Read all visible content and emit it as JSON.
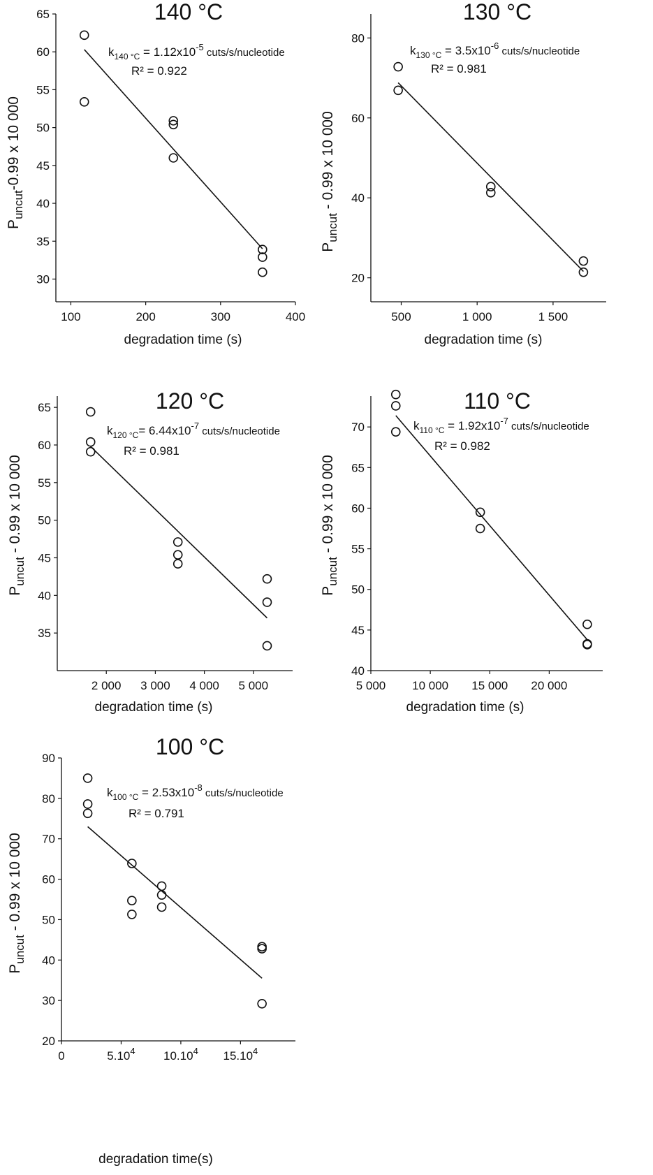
{
  "chart_data": [
    {
      "type": "scatter",
      "title": "140 °C",
      "xlabel": "degradation time (s)",
      "ylabel": {
        "main": "P",
        "sub": "uncut",
        "rest": "-0.99 x 10 000"
      },
      "x_ticks": [
        {
          "v": 100,
          "label": "100"
        },
        {
          "v": 200,
          "label": "200"
        },
        {
          "v": 300,
          "label": "300"
        },
        {
          "v": 400,
          "label": "400"
        }
      ],
      "y_ticks": [
        {
          "v": 30,
          "label": "30"
        },
        {
          "v": 35,
          "label": "35"
        },
        {
          "v": 40,
          "label": "40"
        },
        {
          "v": 45,
          "label": "45"
        },
        {
          "v": 50,
          "label": "50"
        },
        {
          "v": 55,
          "label": "55"
        },
        {
          "v": 60,
          "label": "60"
        },
        {
          "v": 65,
          "label": "65"
        }
      ],
      "xlim": [
        80,
        400
      ],
      "ylim": [
        27,
        65
      ],
      "points": [
        [
          118,
          62.2
        ],
        [
          118,
          53.4
        ],
        [
          237,
          50.9
        ],
        [
          237,
          50.4
        ],
        [
          237,
          46.0
        ],
        [
          356,
          33.9
        ],
        [
          356,
          32.9
        ],
        [
          356,
          30.9
        ]
      ],
      "fit": [
        [
          118,
          60.3
        ],
        [
          356,
          34.0
        ]
      ],
      "annotation": {
        "k_prefix": "k",
        "k_sub": "140 °C",
        "k_eq": " = 1.12x10",
        "k_exp": "-5",
        "k_unit": " cuts/s/nucleotide",
        "r2": "R² = 0.922"
      }
    },
    {
      "type": "scatter",
      "title": "130 °C",
      "xlabel": "degradation time (s)",
      "ylabel": {
        "main": "P",
        "sub": "uncut",
        "rest": " - 0.99 x 10 000"
      },
      "x_ticks": [
        {
          "v": 500,
          "label": "500"
        },
        {
          "v": 1000,
          "label": "1 000"
        },
        {
          "v": 1500,
          "label": "1 500"
        }
      ],
      "y_ticks": [
        {
          "v": 20,
          "label": "20"
        },
        {
          "v": 40,
          "label": "40"
        },
        {
          "v": 60,
          "label": "60"
        },
        {
          "v": 80,
          "label": "80"
        }
      ],
      "xlim": [
        300,
        1850
      ],
      "ylim": [
        14,
        86
      ],
      "points": [
        [
          480,
          72.8
        ],
        [
          480,
          66.9
        ],
        [
          1090,
          42.8
        ],
        [
          1090,
          41.3
        ],
        [
          1700,
          24.2
        ],
        [
          1700,
          21.4
        ]
      ],
      "fit": [
        [
          480,
          68.8
        ],
        [
          1700,
          21.6
        ]
      ],
      "annotation": {
        "k_prefix": "k",
        "k_sub": "130 °C",
        "k_eq": " = 3.5x10",
        "k_exp": "-6",
        "k_unit": " cuts/s/nucleotide",
        "r2": "R² = 0.981"
      }
    },
    {
      "type": "scatter",
      "title": "120 °C",
      "xlabel": "degradation time (s)",
      "ylabel": {
        "main": "P",
        "sub": "uncut",
        "rest": " - 0.99 x 10 000"
      },
      "x_ticks": [
        {
          "v": 2000,
          "label": "2 000"
        },
        {
          "v": 3000,
          "label": "3 000"
        },
        {
          "v": 4000,
          "label": "4 000"
        },
        {
          "v": 5000,
          "label": "5 000"
        }
      ],
      "y_ticks": [
        {
          "v": 35,
          "label": "35"
        },
        {
          "v": 40,
          "label": "40"
        },
        {
          "v": 45,
          "label": "45"
        },
        {
          "v": 50,
          "label": "50"
        },
        {
          "v": 55,
          "label": "55"
        },
        {
          "v": 60,
          "label": "60"
        },
        {
          "v": 65,
          "label": "65"
        }
      ],
      "xlim": [
        1000,
        5800
      ],
      "ylim": [
        30,
        66.5
      ],
      "points": [
        [
          1680,
          64.4
        ],
        [
          1680,
          60.4
        ],
        [
          1680,
          59.1
        ],
        [
          3460,
          47.1
        ],
        [
          3460,
          45.4
        ],
        [
          3460,
          44.2
        ],
        [
          5280,
          42.2
        ],
        [
          5280,
          39.1
        ],
        [
          5280,
          33.3
        ]
      ],
      "fit": [
        [
          1680,
          59.8
        ],
        [
          5280,
          37.0
        ]
      ],
      "annotation": {
        "k_prefix": "k",
        "k_sub": "120 °C",
        "k_eq": "= 6.44x10",
        "k_exp": "-7",
        "k_unit": " cuts/s/nucleotide",
        "r2": "R² = 0.981"
      }
    },
    {
      "type": "scatter",
      "title": "110 °C",
      "xlabel": "degradation time (s)",
      "ylabel": {
        "main": "P",
        "sub": "uncut",
        "rest": " - 0.99 x 10 000"
      },
      "x_ticks": [
        {
          "v": 5000,
          "label": "5 000"
        },
        {
          "v": 10000,
          "label": "10 000"
        },
        {
          "v": 15000,
          "label": "15 000"
        },
        {
          "v": 20000,
          "label": "20 000"
        }
      ],
      "y_ticks": [
        {
          "v": 40,
          "label": "40"
        },
        {
          "v": 45,
          "label": "45"
        },
        {
          "v": 50,
          "label": "50"
        },
        {
          "v": 55,
          "label": "55"
        },
        {
          "v": 60,
          "label": "60"
        },
        {
          "v": 65,
          "label": "65"
        },
        {
          "v": 70,
          "label": "70"
        }
      ],
      "xlim": [
        5000,
        24500
      ],
      "ylim": [
        40,
        73.8
      ],
      "points": [
        [
          7100,
          74.0
        ],
        [
          7100,
          72.6
        ],
        [
          7100,
          69.4
        ],
        [
          14200,
          59.5
        ],
        [
          14200,
          57.5
        ],
        [
          23200,
          45.7
        ],
        [
          23200,
          43.3
        ],
        [
          23200,
          43.2
        ]
      ],
      "fit": [
        [
          7100,
          71.4
        ],
        [
          23200,
          43.8
        ]
      ],
      "annotation": {
        "k_prefix": "k",
        "k_sub": "110 °C",
        "k_eq": " = 1.92x10",
        "k_exp": "-7",
        "k_unit": " cuts/s/nucleotide",
        "r2": "R² = 0.982"
      }
    },
    {
      "type": "scatter",
      "title": "100 °C",
      "xlabel": "degradation time(s)",
      "ylabel": {
        "main": "P",
        "sub": "uncut",
        "rest": " - 0.99 x 10 000"
      },
      "x_ticks": [
        {
          "v": 0,
          "label": "0",
          "sup": ""
        },
        {
          "v": 50000,
          "label": "5.10",
          "sup": "4"
        },
        {
          "v": 100000,
          "label": "10.10",
          "sup": "4"
        },
        {
          "v": 150000,
          "label": "15.10",
          "sup": "4"
        }
      ],
      "y_ticks": [
        {
          "v": 20,
          "label": "20"
        },
        {
          "v": 30,
          "label": "30"
        },
        {
          "v": 40,
          "label": "40"
        },
        {
          "v": 50,
          "label": "50"
        },
        {
          "v": 60,
          "label": "60"
        },
        {
          "v": 70,
          "label": "70"
        },
        {
          "v": 80,
          "label": "80"
        },
        {
          "v": 90,
          "label": "90"
        }
      ],
      "xlim": [
        0,
        196000
      ],
      "ylim": [
        20,
        90
      ],
      "points": [
        [
          22000,
          85.0
        ],
        [
          22000,
          78.6
        ],
        [
          22000,
          76.3
        ],
        [
          59000,
          63.9
        ],
        [
          59000,
          54.7
        ],
        [
          59000,
          51.3
        ],
        [
          84000,
          58.3
        ],
        [
          84000,
          56.1
        ],
        [
          84000,
          53.1
        ],
        [
          168000,
          43.3
        ],
        [
          168000,
          42.8
        ],
        [
          168000,
          29.2
        ]
      ],
      "fit": [
        [
          22000,
          73.0
        ],
        [
          168000,
          35.5
        ]
      ],
      "annotation": {
        "k_prefix": "k",
        "k_sub": "100 °C",
        "k_eq": " = 2.53x10",
        "k_exp": "-8",
        "k_unit": " cuts/s/nucleotide",
        "r2": "R² = 0.791"
      }
    }
  ]
}
